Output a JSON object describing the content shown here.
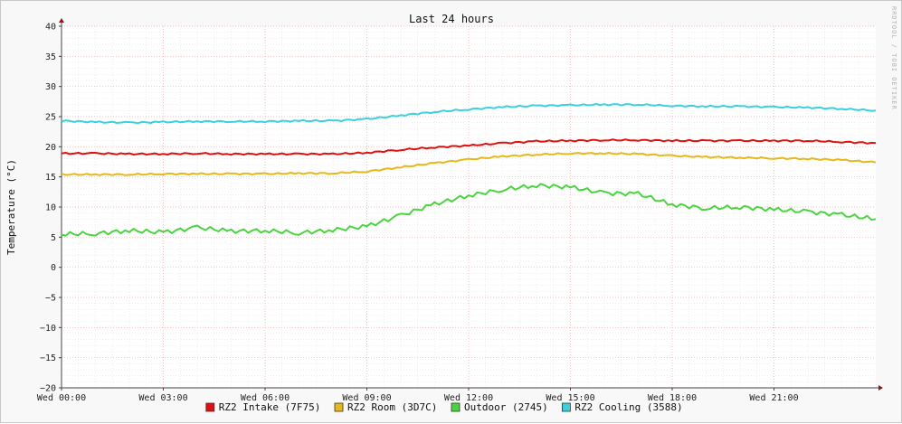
{
  "chart_data": {
    "type": "line",
    "title": "Last 24 hours",
    "ylabel": "Temperature (°C)",
    "watermark": "RRDTOOL / TOBI OETIKER",
    "ylim": [
      -20,
      40
    ],
    "y_ticks": [
      "40",
      "35",
      "30",
      "25",
      "20",
      "15",
      "10",
      "5",
      "0",
      "−5",
      "−10",
      "−15",
      "−20"
    ],
    "y_tick_values": [
      40,
      35,
      30,
      25,
      20,
      15,
      10,
      5,
      0,
      -5,
      -10,
      -15,
      -20
    ],
    "xlim": [
      0,
      24
    ],
    "x_ticks": [
      "Wed 00:00",
      "Wed 03:00",
      "Wed 06:00",
      "Wed 09:00",
      "Wed 12:00",
      "Wed 15:00",
      "Wed 18:00",
      "Wed 21:00"
    ],
    "x_tick_hours": [
      0,
      3,
      6,
      9,
      12,
      15,
      18,
      21
    ],
    "grid": true,
    "legend_position": "bottom-center",
    "x": [
      0,
      1,
      2,
      3,
      4,
      5,
      6,
      7,
      8,
      9,
      10,
      11,
      12,
      13,
      14,
      15,
      16,
      17,
      18,
      19,
      20,
      21,
      22,
      23,
      24
    ],
    "series": [
      {
        "name": "RZ2 Intake (7F75)",
        "color": "#e01010",
        "values": [
          18.9,
          18.9,
          18.8,
          18.8,
          18.9,
          18.8,
          18.8,
          18.8,
          18.8,
          19.0,
          19.5,
          19.9,
          20.2,
          20.6,
          20.9,
          21.0,
          21.1,
          21.1,
          21.0,
          21.0,
          21.0,
          21.0,
          21.0,
          20.8,
          20.6
        ]
      },
      {
        "name": "RZ2 Room (3D7C)",
        "color": "#e6b81c",
        "values": [
          15.4,
          15.4,
          15.4,
          15.5,
          15.5,
          15.5,
          15.5,
          15.6,
          15.6,
          15.9,
          16.6,
          17.3,
          17.9,
          18.4,
          18.7,
          18.9,
          18.9,
          18.8,
          18.5,
          18.3,
          18.2,
          18.1,
          18.0,
          17.8,
          17.4
        ]
      },
      {
        "name": "Outdoor (2745)",
        "color": "#4ad43f",
        "values": [
          5.5,
          5.6,
          6.1,
          5.8,
          6.6,
          6.0,
          6.1,
          5.7,
          6.2,
          6.8,
          8.6,
          10.5,
          11.9,
          12.9,
          13.6,
          13.3,
          12.3,
          12.2,
          10.4,
          9.8,
          10.0,
          9.6,
          9.2,
          8.7,
          8.0
        ]
      },
      {
        "name": "RZ2 Cooling (3588)",
        "color": "#3cd0dc",
        "values": [
          24.3,
          24.1,
          24.0,
          24.1,
          24.2,
          24.2,
          24.2,
          24.3,
          24.3,
          24.6,
          25.2,
          25.8,
          26.2,
          26.6,
          26.8,
          26.9,
          27.0,
          27.0,
          26.8,
          26.7,
          26.7,
          26.6,
          26.5,
          26.3,
          26.0
        ]
      }
    ]
  }
}
